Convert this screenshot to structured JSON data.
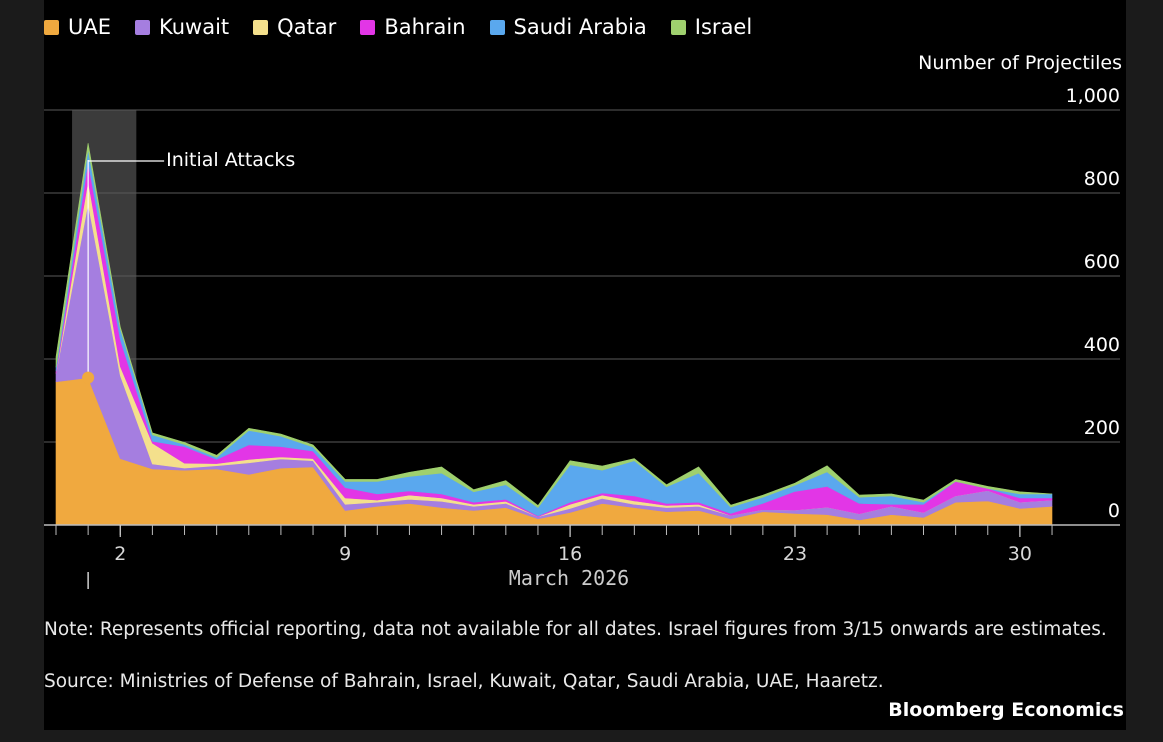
{
  "chart_data": {
    "type": "area",
    "stacked": true,
    "unit_label": "Number of Projectiles",
    "xlabel": "March 2026",
    "ylim": [
      0,
      1000
    ],
    "yticks": [
      {
        "value": 0,
        "label": "0"
      },
      {
        "value": 200,
        "label": "200"
      },
      {
        "value": 400,
        "label": "400"
      },
      {
        "value": 600,
        "label": "600"
      },
      {
        "value": 800,
        "label": "800"
      },
      {
        "value": 1000,
        "label": "1,000"
      }
    ],
    "xticks": [
      {
        "day": 2,
        "label": "2"
      },
      {
        "day": 9,
        "label": "9"
      },
      {
        "day": 16,
        "label": "16"
      },
      {
        "day": 23,
        "label": "23"
      },
      {
        "day": 30,
        "label": "30"
      }
    ],
    "x": [
      0,
      1,
      2,
      3,
      4,
      5,
      6,
      7,
      8,
      9,
      10,
      11,
      12,
      13,
      14,
      15,
      16,
      17,
      18,
      19,
      20,
      21,
      22,
      23,
      24,
      25,
      26,
      27,
      28,
      29,
      30,
      31
    ],
    "series": [
      {
        "name": "UAE",
        "color": "#f0a93f",
        "values": [
          345,
          355,
          160,
          135,
          132,
          135,
          122,
          137,
          140,
          35,
          45,
          52,
          42,
          35,
          42,
          15,
          30,
          52,
          42,
          32,
          35,
          15,
          32,
          28,
          25,
          12,
          25,
          18,
          55,
          58,
          40,
          45
        ]
      },
      {
        "name": "Kuwait",
        "color": "#a57ee0",
        "values": [
          20,
          420,
          200,
          12,
          5,
          8,
          28,
          22,
          15,
          15,
          10,
          10,
          15,
          10,
          10,
          5,
          10,
          12,
          8,
          10,
          10,
          8,
          5,
          8,
          18,
          15,
          20,
          12,
          15,
          25,
          15,
          15
        ]
      },
      {
        "name": "Qatar",
        "color": "#f4e08c",
        "values": [
          0,
          55,
          22,
          50,
          12,
          5,
          8,
          5,
          5,
          15,
          5,
          10,
          8,
          5,
          5,
          0,
          10,
          8,
          8,
          5,
          5,
          0,
          0,
          0,
          0,
          0,
          0,
          0,
          0,
          0,
          0,
          0
        ]
      },
      {
        "name": "Bahrain",
        "color": "#e236e6",
        "values": [
          5,
          45,
          65,
          5,
          40,
          10,
          35,
          25,
          18,
          25,
          15,
          10,
          10,
          5,
          5,
          2,
          5,
          5,
          12,
          5,
          5,
          5,
          15,
          45,
          50,
          25,
          5,
          20,
          35,
          5,
          10,
          5
        ]
      },
      {
        "name": "Saudi Arabia",
        "color": "#5aa8ee",
        "values": [
          10,
          30,
          25,
          15,
          5,
          5,
          35,
          25,
          10,
          15,
          30,
          35,
          50,
          25,
          35,
          20,
          90,
          55,
          85,
          40,
          70,
          15,
          15,
          15,
          35,
          15,
          20,
          5,
          0,
          0,
          10,
          10
        ]
      },
      {
        "name": "Israel",
        "color": "#9fd06e",
        "values": [
          25,
          15,
          5,
          5,
          5,
          5,
          5,
          5,
          5,
          5,
          5,
          10,
          15,
          5,
          10,
          5,
          10,
          10,
          5,
          5,
          15,
          5,
          5,
          5,
          15,
          5,
          5,
          5,
          5,
          5,
          5,
          0
        ]
      }
    ],
    "annotation": {
      "text": "Initial Attacks",
      "day": 1
    },
    "highlight_range": [
      0.5,
      2.5
    ]
  },
  "legend": [
    {
      "label": "UAE",
      "color": "#f0a93f"
    },
    {
      "label": "Kuwait",
      "color": "#a57ee0"
    },
    {
      "label": "Qatar",
      "color": "#f4e08c"
    },
    {
      "label": "Bahrain",
      "color": "#e236e6"
    },
    {
      "label": "Saudi Arabia",
      "color": "#5aa8ee"
    },
    {
      "label": "Israel",
      "color": "#9fd06e"
    }
  ],
  "footer": {
    "note": "Note: Represents official reporting, data not available for all dates. Israel figures from 3/15 onwards are estimates.",
    "source": "Source: Ministries of Defense of Bahrain, Israel, Kuwait, Qatar, Saudi Arabia, UAE, Haaretz.",
    "brand": "Bloomberg Economics"
  }
}
